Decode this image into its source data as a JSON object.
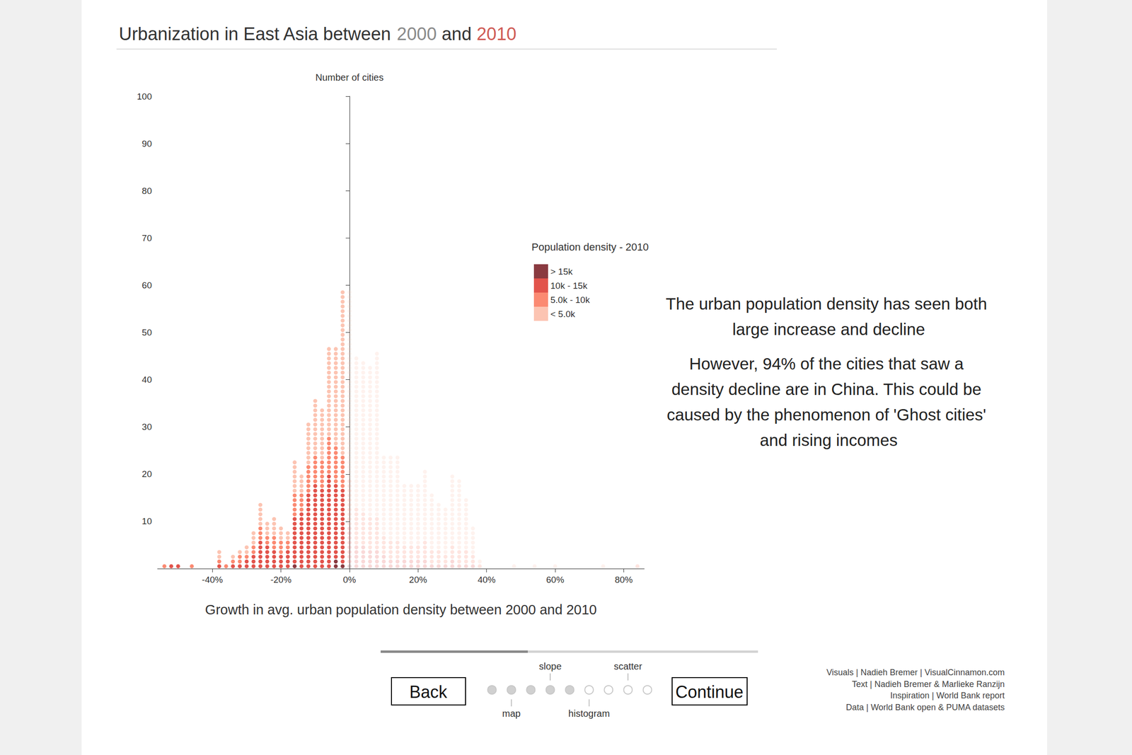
{
  "chart_data": {
    "type": "dot_histogram",
    "title": "Urbanization in East Asia between 2000 and 2010",
    "title_highlights": [
      {
        "text": "2000",
        "color": "#8a8a8a"
      },
      {
        "text": "2010",
        "color": "#cf5b55"
      }
    ],
    "x_label": "Growth in avg. urban population density between 2000 and 2010",
    "y_label": "Number of cities",
    "legend_title": "Population density - 2010",
    "legend": "upper right",
    "x": [
      -54,
      -52,
      -50,
      -46,
      -38,
      -36,
      -34,
      -32,
      -30,
      -28,
      -26,
      -24,
      -22,
      -20,
      -18,
      -16,
      -14,
      -12,
      -10,
      -8,
      -6,
      -4,
      -2,
      0,
      2,
      4,
      6,
      8,
      10,
      12,
      14,
      16,
      18,
      20,
      22,
      24,
      26,
      28,
      30,
      32,
      34,
      36,
      38,
      48,
      54,
      60,
      74,
      84
    ],
    "series": [
      {
        "name": "> 15k",
        "color": "#8a3a40",
        "values": [
          0,
          0,
          0,
          0,
          0,
          0,
          0,
          0,
          0,
          0,
          0,
          0,
          0,
          0,
          0,
          1,
          0,
          0,
          0,
          0,
          0,
          2,
          1,
          1,
          0,
          0,
          0,
          0,
          0,
          0,
          0,
          0,
          0,
          0,
          0,
          0,
          0,
          0,
          0,
          0,
          0,
          0,
          0,
          0,
          0,
          0,
          0,
          0
        ]
      },
      {
        "name": "10k - 15k",
        "color": "#e2544c",
        "values": [
          0,
          1,
          1,
          0,
          1,
          0,
          1,
          1,
          2,
          3,
          6,
          5,
          4,
          3,
          4,
          10,
          12,
          16,
          18,
          17,
          20,
          16,
          16,
          8,
          5,
          5,
          4,
          4,
          3,
          2,
          2,
          2,
          2,
          2,
          2,
          1,
          1,
          1,
          2,
          1,
          1,
          1,
          0,
          0,
          0,
          0,
          0,
          0
        ]
      },
      {
        "name": "5.0k - 10k",
        "color": "#fb8a72",
        "values": [
          1,
          0,
          0,
          1,
          1,
          1,
          1,
          2,
          1,
          2,
          3,
          2,
          3,
          3,
          2,
          5,
          4,
          6,
          6,
          6,
          8,
          8,
          7,
          10,
          8,
          7,
          7,
          7,
          4,
          4,
          4,
          3,
          3,
          3,
          4,
          3,
          3,
          2,
          3,
          3,
          3,
          2,
          1,
          0,
          0,
          0,
          0,
          1
        ]
      },
      {
        "name": "< 5.0k",
        "color": "#fcc4b2",
        "values": [
          0,
          0,
          0,
          0,
          2,
          0,
          1,
          1,
          2,
          3,
          5,
          3,
          4,
          3,
          2,
          7,
          4,
          9,
          12,
          11,
          19,
          21,
          35,
          40,
          32,
          32,
          32,
          35,
          17,
          18,
          18,
          13,
          13,
          13,
          15,
          12,
          10,
          10,
          15,
          15,
          11,
          6,
          1,
          1,
          1,
          1,
          1,
          0
        ]
      }
    ],
    "stacked": true,
    "grid": false,
    "xlim": [
      -56,
      86
    ],
    "xticks": [
      {
        "value": -40,
        "label": "-40%"
      },
      {
        "value": -20,
        "label": "-20%"
      },
      {
        "value": 0,
        "label": "0%"
      },
      {
        "value": 20,
        "label": "20%"
      },
      {
        "value": 40,
        "label": "40%"
      },
      {
        "value": 60,
        "label": "60%"
      },
      {
        "value": 80,
        "label": "80%"
      }
    ],
    "ylim": [
      0,
      100
    ],
    "yticks": [
      10,
      20,
      30,
      40,
      50,
      60,
      70,
      80,
      90,
      100
    ],
    "annotations": [
      "The urban population density has seen both large increase and decline",
      "However, 94% of the cities that saw a density decline are in China. This could be caused by the phenomenon of 'Ghost cities' and rising incomes"
    ]
  },
  "navigation": {
    "back": "Back",
    "continue": "Continue",
    "current_step": 5,
    "steps": [
      null,
      "map",
      null,
      "slope",
      null,
      "histogram",
      null,
      "scatter",
      null
    ]
  },
  "credits": [
    "Visuals | Nadieh Bremer | VisualCinnamon.com",
    "Text | Nadieh Bremer & Marlieke Ranzijn",
    "Inspiration | World Bank report",
    "Data | World Bank open & PUMA datasets"
  ]
}
